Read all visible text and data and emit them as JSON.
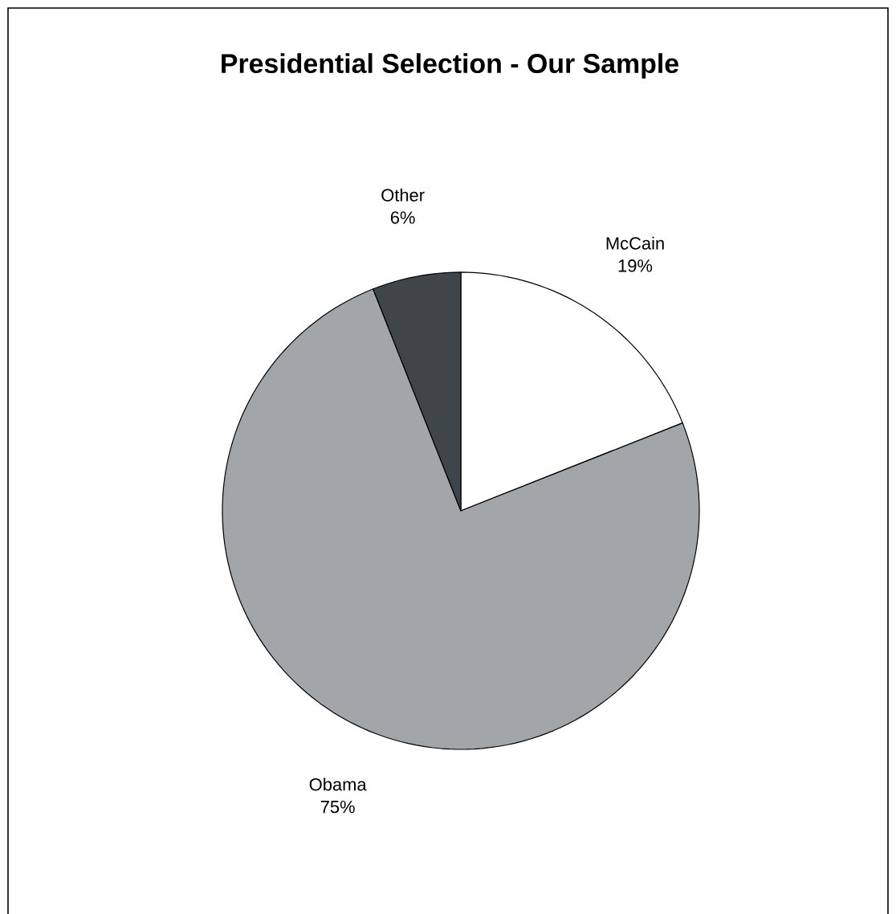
{
  "chart_data": {
    "type": "pie",
    "title": "Presidential Selection - Our Sample",
    "categories": [
      "McCain",
      "Obama",
      "Other"
    ],
    "values": [
      19,
      75,
      6
    ],
    "colors": [
      "#ffffff",
      "#a3a6a9",
      "#3f4548"
    ],
    "value_labels": [
      "19%",
      "75%",
      "6%"
    ]
  }
}
